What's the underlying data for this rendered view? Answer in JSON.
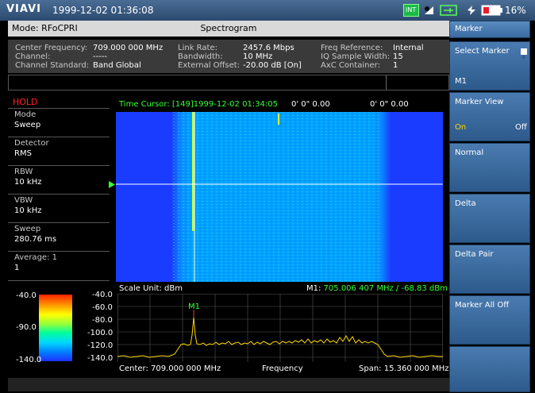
{
  "topbar": {
    "brand": "VIAVI",
    "datetime": "1999-12-02 01:36:08",
    "int_badge": "INT",
    "battery": "16%"
  },
  "header": {
    "mode": "Mode: RFoCPRI",
    "title": "Spectrogram"
  },
  "info": {
    "c1": [
      {
        "label": "Center Frequency:",
        "value": "709.000 000 MHz"
      },
      {
        "label": "Channel:",
        "value": "-----"
      },
      {
        "label": "Channel Standard:",
        "value": "Band Global"
      }
    ],
    "c2": [
      {
        "label": "Link Rate:",
        "value": "2457.6 Mbps"
      },
      {
        "label": "Bandwidth:",
        "value": "10 MHz"
      },
      {
        "label": "External Offset:",
        "value": "-20.00 dB [On]"
      }
    ],
    "c3": [
      {
        "label": "Freq Reference:",
        "value": "Internal"
      },
      {
        "label": "IQ Sample Width:",
        "value": "15"
      },
      {
        "label": "AxC Container:",
        "value": "1"
      }
    ]
  },
  "left": {
    "hold": "HOLD",
    "params": [
      {
        "title": "Mode",
        "value": "Sweep"
      },
      {
        "title": "Detector",
        "value": "RMS"
      },
      {
        "title": "RBW",
        "value": "10 kHz"
      },
      {
        "title": "VBW",
        "value": "10 kHz"
      },
      {
        "title": "Sweep",
        "value": "280.76 ms"
      },
      {
        "title": "Average: 1",
        "value": "1"
      }
    ],
    "colorbar": {
      "top": "-40.0",
      "mid": "-90.0",
      "bottom": "-140.0"
    }
  },
  "spectrogram": {
    "time_cursor": "Time Cursor: [149]1999-12-02 01:34:05",
    "cursor_pos1": "0' 0\" 0.00",
    "cursor_pos2": "0' 0\" 0.00"
  },
  "spectrum": {
    "scale_unit": "Scale Unit: dBm",
    "marker_prefix": "M1:",
    "marker_value": "705.006 407 MHz / -68.83 dBm",
    "marker_label": "M1",
    "y_ticks": [
      "-40.0",
      "-60.0",
      "-80.0",
      "-100.0",
      "-120.0",
      "-140.0"
    ],
    "center": "Center: 709.000 000 MHz",
    "x_label": "Frequency",
    "span": "Span: 15.360 000 MHz"
  },
  "softkeys": {
    "title": "Marker",
    "select_marker": "Select Marker",
    "select_marker_value": "M1",
    "marker_view": "Marker View",
    "marker_view_on": "On",
    "marker_view_off": "Off",
    "normal": "Normal",
    "delta": "Delta",
    "delta_pair": "Delta Pair",
    "marker_all_off": "Marker All Off"
  },
  "colors": {
    "accent_green": "#33ff33",
    "hold_red": "#ff2222",
    "marker_yellow": "#ffd700",
    "softkey_blue": "#3a6aa0",
    "spectrogram_blue": "#1a3cff"
  }
}
